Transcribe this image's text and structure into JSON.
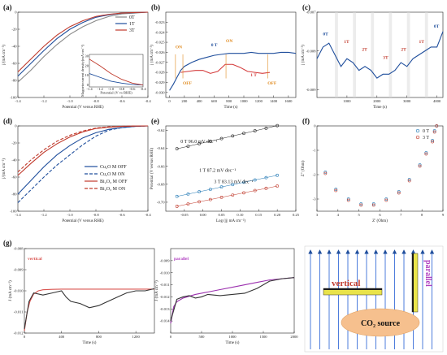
{
  "figure": {
    "labels": [
      "(a)",
      "(b)",
      "(c)",
      "(d)",
      "(e)",
      "(f)",
      "(g)"
    ]
  },
  "chart_data": [
    {
      "id": "a",
      "type": "line",
      "xlabel": "Potential (V versus RHE)",
      "ylabel": "j/(mA cm⁻²)",
      "xlim": [
        -1.4,
        -0.4
      ],
      "ylim": [
        -100,
        0
      ],
      "xticks": [
        "-1.4",
        "-1.2",
        "-1.0",
        "-0.8",
        "-0.6",
        "-0.4"
      ],
      "yticks": [
        "-100",
        "-80",
        "-60",
        "-40",
        "-20",
        "0"
      ],
      "series": [
        {
          "name": "0T",
          "color": "#888888",
          "x": [
            -1.4,
            -1.3,
            -1.2,
            -1.1,
            -1.0,
            -0.9,
            -0.8,
            -0.7,
            -0.6,
            -0.5,
            -0.4
          ],
          "y": [
            -82,
            -68,
            -52,
            -38,
            -26,
            -17,
            -10,
            -5,
            -2,
            -1,
            0
          ]
        },
        {
          "name": "1T",
          "color": "#1f4e9c",
          "x": [
            -1.4,
            -1.3,
            -1.2,
            -1.1,
            -1.0,
            -0.9,
            -0.8,
            -0.7,
            -0.6,
            -0.5,
            -0.4
          ],
          "y": [
            -75,
            -60,
            -45,
            -31,
            -20,
            -12,
            -6,
            -3,
            -1,
            -0.5,
            0
          ]
        },
        {
          "name": "3T",
          "color": "#c0392b",
          "x": [
            -1.4,
            -1.3,
            -1.2,
            -1.1,
            -1.0,
            -0.9,
            -0.8,
            -0.7,
            -0.6,
            -0.5,
            -0.4
          ],
          "y": [
            -70,
            -55,
            -40,
            -27,
            -17,
            -10,
            -5,
            -2.5,
            -1,
            -0.4,
            0
          ]
        }
      ],
      "inset": {
        "xlabel": "Potential (V vs RHE)",
        "ylabel": "Magnetocurrent density(mA cm⁻²)",
        "xticks": [
          "-1.4",
          "-1.2",
          "-1.0",
          "-0.8",
          "-0.6",
          "-0.4"
        ],
        "yticks": [
          "0",
          "10",
          "20",
          "30"
        ],
        "xlim": [
          -1.4,
          -0.4
        ],
        "ylim": [
          -2,
          32
        ],
        "series": [
          {
            "name": "1T",
            "color": "#1f4e9c",
            "x": [
              -1.4,
              -1.2,
              -1.0,
              -0.8,
              -0.6,
              -0.4
            ],
            "y": [
              12,
              8,
              4,
              2,
              0.5,
              0
            ]
          },
          {
            "name": "3T",
            "color": "#c0392b",
            "x": [
              -1.4,
              -1.2,
              -1.0,
              -0.8,
              -0.6,
              -0.4
            ],
            "y": [
              27,
              20,
              12,
              6,
              2,
              0
            ]
          }
        ]
      }
    },
    {
      "id": "b",
      "type": "line",
      "xlabel": "Time (s)",
      "ylabel": "j (mA cm⁻²)",
      "xlim": [
        -50,
        1700
      ],
      "ylim": [
        -0.0305,
        -0.022
      ],
      "xticks": [
        "0",
        "200",
        "400",
        "600",
        "800",
        "1000",
        "1200",
        "1400",
        "1600"
      ],
      "yticks": [
        "-0.023",
        "-0.024",
        "-0.025",
        "-0.026",
        "-0.027",
        "-0.028",
        "-0.029",
        "-0.030"
      ],
      "annotations": [
        "ON",
        "OFF",
        "0 T",
        "ON",
        "1 T",
        "OFF"
      ],
      "series": [
        {
          "name": "0 T",
          "color": "#1f4e9c",
          "x": [
            0,
            50,
            100,
            150,
            200,
            300,
            400,
            500,
            600,
            700,
            800,
            900,
            1000,
            1100,
            1200,
            1300,
            1400,
            1500,
            1600,
            1700
          ],
          "y": [
            -0.0298,
            -0.0292,
            -0.0285,
            -0.0278,
            -0.0274,
            -0.027,
            -0.0267,
            -0.0265,
            -0.0263,
            -0.0262,
            -0.0261,
            -0.0261,
            -0.0261,
            -0.026,
            -0.0261,
            -0.0261,
            -0.0261,
            -0.026,
            -0.026,
            -0.0261
          ]
        },
        {
          "name": "1 T",
          "color": "#d43a3a",
          "x": [
            150,
            250,
            350,
            450,
            550,
            650,
            750,
            850,
            950,
            1050,
            1150,
            1250,
            1350
          ],
          "y": [
            -0.028,
            -0.0279,
            -0.0278,
            -0.0278,
            -0.0281,
            -0.0279,
            -0.0272,
            -0.0272,
            -0.0275,
            -0.0279,
            -0.028,
            -0.0281,
            -0.028
          ]
        }
      ]
    },
    {
      "id": "c",
      "type": "line",
      "xlabel": "Time (s)",
      "ylabel": "j (mA cm⁻²)",
      "xlim": [
        0,
        4200
      ],
      "ylim": [
        -0.0092,
        -0.007
      ],
      "xticks": [
        "1000",
        "2000",
        "3000",
        "4000"
      ],
      "yticks": [
        "-0.007",
        "-0.008",
        "-0.009"
      ],
      "annotations": [
        "0T",
        "1T",
        "2T",
        "3T",
        "2T",
        "1T",
        "0T"
      ],
      "series": [
        {
          "name": "current",
          "color": "#1f4e9c",
          "x": [
            0,
            200,
            400,
            600,
            800,
            1000,
            1200,
            1400,
            1600,
            1800,
            2000,
            2200,
            2400,
            2600,
            2800,
            3000,
            3200,
            3400,
            3600,
            3800,
            4000,
            4200
          ],
          "y": [
            -0.0082,
            -0.0079,
            -0.0078,
            -0.0081,
            -0.0084,
            -0.0082,
            -0.0083,
            -0.0085,
            -0.0084,
            -0.0085,
            -0.0087,
            -0.0086,
            -0.0086,
            -0.0085,
            -0.0083,
            -0.0084,
            -0.0082,
            -0.0081,
            -0.008,
            -0.0079,
            -0.0079,
            -0.0075
          ]
        }
      ]
    },
    {
      "id": "d",
      "type": "line",
      "xlabel": "Potential (V versus RHE)",
      "ylabel": "j/(mA cm⁻²)",
      "xlim": [
        -1.4,
        -0.4
      ],
      "ylim": [
        -100,
        0
      ],
      "xticks": [
        "-1.4",
        "-1.2",
        "-1.0",
        "-0.8",
        "-0.6",
        "-0.4"
      ],
      "yticks": [
        "-100",
        "-80",
        "-60",
        "-40",
        "-20",
        "0"
      ],
      "series": [
        {
          "name": "Cu₂O M OFF",
          "color": "#1f4e9c",
          "dash": "",
          "x": [
            -1.4,
            -1.3,
            -1.2,
            -1.1,
            -1.0,
            -0.9,
            -0.8,
            -0.7,
            -0.6,
            -0.5,
            -0.4
          ],
          "y": [
            -80,
            -64,
            -48,
            -34,
            -23,
            -14,
            -8,
            -4,
            -2,
            -0.5,
            0
          ]
        },
        {
          "name": "Cu₂O M ON",
          "color": "#1f4e9c",
          "dash": "4,2",
          "x": [
            -1.4,
            -1.3,
            -1.2,
            -1.1,
            -1.0,
            -0.9,
            -0.8,
            -0.7,
            -0.6,
            -0.5,
            -0.4
          ],
          "y": [
            -90,
            -75,
            -60,
            -46,
            -34,
            -22,
            -12,
            -5,
            -2,
            -0.5,
            0
          ]
        },
        {
          "name": "Bi₂O₃ M OFF",
          "color": "#c0392b",
          "dash": "",
          "x": [
            -1.4,
            -1.3,
            -1.2,
            -1.1,
            -1.0,
            -0.9,
            -0.8,
            -0.7,
            -0.6,
            -0.5,
            -0.4
          ],
          "y": [
            -58,
            -44,
            -31,
            -21,
            -13,
            -7,
            -3,
            -1.5,
            -0.5,
            -0.2,
            0
          ]
        },
        {
          "name": "Bi₂O₃ M ON",
          "color": "#c0392b",
          "dash": "4,2",
          "x": [
            -1.4,
            -1.3,
            -1.2,
            -1.1,
            -1.0,
            -0.9,
            -0.8,
            -0.7,
            -0.6,
            -0.5,
            -0.4
          ],
          "y": [
            -54,
            -40,
            -28,
            -18,
            -11,
            -6,
            -2.5,
            -1,
            -0.4,
            -0.1,
            0
          ]
        }
      ]
    },
    {
      "id": "e",
      "type": "scatter",
      "xlabel": "Log (|j| mA cm⁻²)",
      "ylabel": "Potential (V versus RHE)",
      "xlim": [
        -0.1,
        0.25
      ],
      "ylim": [
        -0.71,
        -0.615
      ],
      "xticks": [
        "-0.05",
        "0.00",
        "0.05",
        "0.10",
        "0.15",
        "0.20",
        "0.25"
      ],
      "yticks": [
        "-0.62",
        "-0.64",
        "-0.66",
        "-0.68",
        "-0.70"
      ],
      "series": [
        {
          "name": "0 T",
          "label": "0 T  96.0 mV dec⁻¹",
          "color": "#222222",
          "x": [
            -0.07,
            -0.04,
            -0.01,
            0.02,
            0.05,
            0.08,
            0.11,
            0.14,
            0.17,
            0.2
          ],
          "y": [
            -0.6405,
            -0.6377,
            -0.6348,
            -0.632,
            -0.6291,
            -0.6262,
            -0.6233,
            -0.6205,
            -0.6176,
            -0.6147
          ]
        },
        {
          "name": "1 T",
          "label": "1 T  87.2 mV dec⁻¹",
          "color": "#1f77b4",
          "x": [
            -0.07,
            -0.04,
            -0.01,
            0.02,
            0.05,
            0.08,
            0.11,
            0.14,
            0.17,
            0.2
          ],
          "y": [
            -0.6935,
            -0.6909,
            -0.6883,
            -0.6857,
            -0.683,
            -0.6804,
            -0.6778,
            -0.6752,
            -0.6726,
            -0.67
          ]
        },
        {
          "name": "3 T",
          "label": "3 T  83.13 mV dec⁻¹",
          "color": "#c0392b",
          "x": [
            -0.07,
            -0.04,
            -0.01,
            0.02,
            0.05,
            0.08,
            0.11,
            0.14,
            0.17,
            0.2
          ],
          "y": [
            -0.7045,
            -0.702,
            -0.6995,
            -0.697,
            -0.6945,
            -0.692,
            -0.6895,
            -0.687,
            -0.6845,
            -0.682
          ]
        }
      ]
    },
    {
      "id": "f",
      "type": "scatter",
      "xlabel": "Z′ (Ohm)",
      "ylabel": "Z″ (Ohm)",
      "xlim": [
        3,
        9
      ],
      "ylim": [
        -3.5,
        0
      ],
      "xticks": [
        "3",
        "4",
        "5",
        "6",
        "7",
        "8",
        "9"
      ],
      "yticks": [
        "-3",
        "-2",
        "-1",
        "0"
      ],
      "series": [
        {
          "name": "0 T",
          "color": "#1f77b4",
          "x": [
            3.4,
            3.9,
            4.5,
            5.1,
            5.7,
            6.3,
            6.9,
            7.4,
            7.9,
            8.2,
            8.5,
            8.6,
            8.7
          ],
          "y": [
            -1.9,
            -2.6,
            -3.0,
            -3.2,
            -3.2,
            -3.0,
            -2.7,
            -2.2,
            -1.6,
            -1.1,
            -0.6,
            -0.2,
            0
          ]
        },
        {
          "name": "3 T",
          "color": "#c0392b",
          "x": [
            3.4,
            3.9,
            4.5,
            5.1,
            5.7,
            6.3,
            6.9,
            7.4,
            7.9,
            8.2,
            8.5,
            8.6,
            8.7
          ],
          "y": [
            -1.95,
            -2.65,
            -3.05,
            -3.25,
            -3.25,
            -3.05,
            -2.75,
            -2.25,
            -1.65,
            -1.15,
            -0.65,
            -0.25,
            0
          ]
        }
      ]
    },
    {
      "id": "g1",
      "type": "line",
      "title": "vertical",
      "xlabel": "Time (s)",
      "ylabel": "J (mA cm⁻²)",
      "xlim": [
        0,
        1400
      ],
      "ylim": [
        -0.012,
        -0.008
      ],
      "xticks": [
        "0",
        "400",
        "800",
        "1200"
      ],
      "yticks": [
        "-0.008",
        "-0.009",
        "-0.010",
        "-0.011",
        "-0.012"
      ],
      "series": [
        {
          "name": "fit",
          "color": "#d9534f",
          "x": [
            0,
            30,
            60,
            100,
            150,
            200,
            300,
            400,
            600,
            800,
            1000,
            1200,
            1400
          ],
          "y": [
            -0.0119,
            -0.011,
            -0.0105,
            -0.01015,
            -0.01,
            -0.00995,
            -0.00993,
            -0.00992,
            -0.00992,
            -0.00992,
            -0.00992,
            -0.00992,
            -0.00992
          ]
        },
        {
          "name": "data",
          "color": "#333333",
          "x": [
            0,
            50,
            100,
            200,
            300,
            400,
            450,
            500,
            600,
            700,
            800,
            900,
            1000,
            1100,
            1200,
            1300,
            1400
          ],
          "y": [
            -0.0118,
            -0.0105,
            -0.0101,
            -0.0102,
            -0.0101,
            -0.01,
            -0.0103,
            -0.0105,
            -0.0106,
            -0.0108,
            -0.0107,
            -0.0105,
            -0.0103,
            -0.0101,
            -0.01,
            -0.01,
            -0.0099
          ]
        }
      ]
    },
    {
      "id": "g2",
      "type": "line",
      "title": "parallel",
      "xlabel": "Time (s)",
      "ylabel": "J (mA cm⁻²)",
      "xlim": [
        0,
        2000
      ],
      "ylim": [
        -0.015,
        -0.008
      ],
      "xticks": [
        "0",
        "500",
        "1000",
        "1500",
        "2000"
      ],
      "yticks": [
        "-0.009",
        "-0.010",
        "-0.011",
        "-0.012",
        "-0.013",
        "-0.014"
      ],
      "series": [
        {
          "name": "fit",
          "color": "#9b2fae",
          "x": [
            0,
            50,
            100,
            200,
            400,
            600,
            800,
            1000,
            1200,
            1400,
            1600,
            1800,
            2000
          ],
          "y": [
            -0.0142,
            -0.0128,
            -0.0124,
            -0.0121,
            -0.0118,
            -0.0116,
            -0.0114,
            -0.0112,
            -0.011,
            -0.0108,
            -0.0106,
            -0.0105,
            -0.0104
          ]
        },
        {
          "name": "data",
          "color": "#333333",
          "x": [
            0,
            100,
            200,
            300,
            400,
            500,
            600,
            800,
            1000,
            1200,
            1400,
            1600,
            1800,
            2000
          ],
          "y": [
            -0.014,
            -0.0122,
            -0.012,
            -0.0119,
            -0.0121,
            -0.012,
            -0.0118,
            -0.0119,
            -0.0118,
            -0.0117,
            -0.0113,
            -0.0107,
            -0.0105,
            -0.0104
          ]
        }
      ]
    }
  ],
  "schematic": {
    "vertical_label": "vertical",
    "parallel_label": "parallel",
    "source_label": "CO₂ source"
  }
}
